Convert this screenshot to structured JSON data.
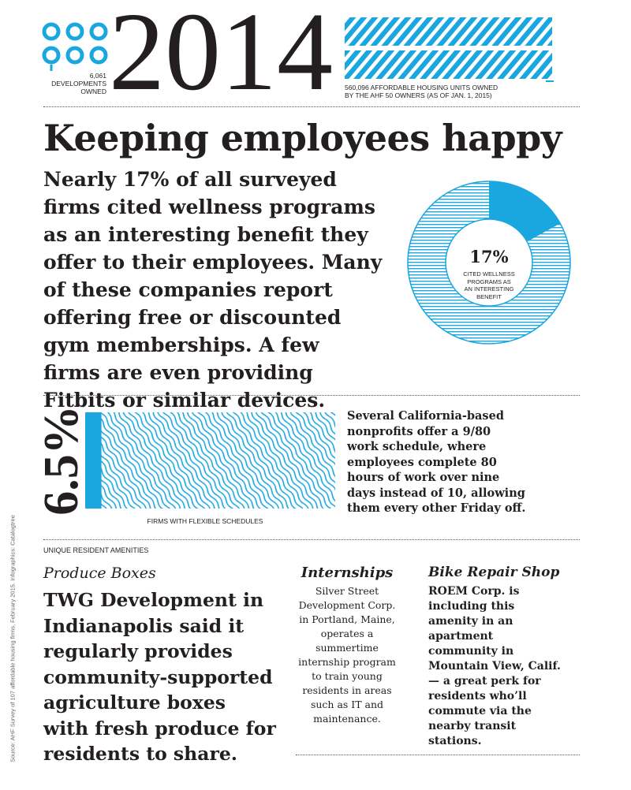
{
  "header": {
    "developments": [
      "6,061",
      "DEVELOPMENTS",
      "OWNED"
    ],
    "year": "2014",
    "units": [
      "560,096 AFFORDABLE HOUSING UNITS OWNED",
      "BY THE AHF 50 OWNERS (AS OF JAN. 1, 2015)"
    ]
  },
  "title": "Keeping employees happy",
  "intro": [
    "Nearly 17% of all surveyed",
    "firms cited wellness programs",
    "as an interesting benefit they",
    "offer to their employees. Many",
    "of these companies report",
    "offering free or discounted",
    "gym memberships. A few",
    "firms are even providing",
    "Fitbits or similar devices."
  ],
  "donut": {
    "value": 17,
    "label": "17%",
    "caption": [
      "CITED WELLNESS",
      "PROGRAMS AS",
      "AN INTERESTING",
      "BENEFIT"
    ]
  },
  "bar": {
    "value": 6.5,
    "label": "6.5%",
    "caption": "FIRMS WITH FLEXIBLE SCHEDULES"
  },
  "schedule": [
    "Several California-based",
    "nonprofits offer a 9/80",
    "work schedule, where",
    "employees complete 80",
    "hours of work over nine",
    "days instead of 10, allowing",
    "them every other Friday off."
  ],
  "amenities": {
    "heading": "UNIQUE RESIDENT AMENITIES",
    "produce": {
      "title": "Produce Boxes",
      "lines": [
        "TWG Development in",
        "Indianapolis said it",
        "regularly provides",
        "community-supported",
        "agriculture boxes",
        "with fresh produce for",
        "residents to share."
      ]
    },
    "internships": {
      "title": "Internships",
      "lines": [
        "Silver Street",
        "Development Corp.",
        "in Portland, Maine,",
        "operates a",
        "summertime",
        "internship program",
        "to train young",
        "residents in areas",
        "such as IT and",
        "maintenance."
      ]
    },
    "bike": {
      "title": "Bike Repair Shop",
      "lines": [
        "ROEM Corp. is",
        "including this",
        "amenity in an",
        "apartment",
        "community in",
        "Mountain View, Calif.",
        "— a great perk for",
        "residents who’ll",
        "commute via the",
        "nearby transit",
        "stations."
      ]
    }
  },
  "source": "Source: AHF Survey of 107 affordable housing firms, February 2015. Infographics: Catalogtree"
}
